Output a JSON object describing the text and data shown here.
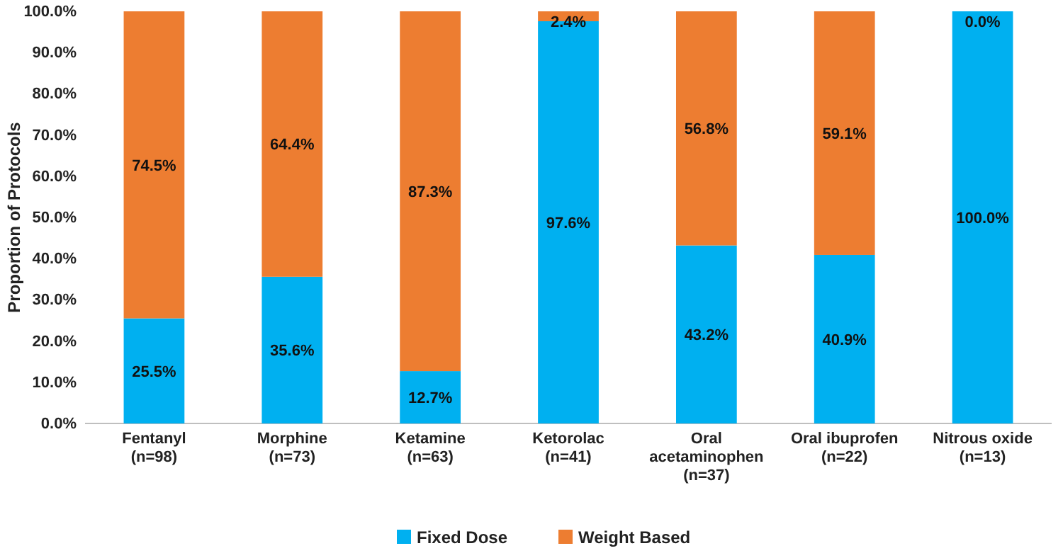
{
  "chart_data": {
    "type": "bar",
    "stacked": true,
    "ylabel": "Proportion of Protocols",
    "categories": [
      "Fentanyl\n(n=98)",
      "Morphine\n(n=73)",
      "Ketamine\n(n=63)",
      "Ketorolac\n(n=41)",
      "Oral\nacetaminophen\n(n=37)",
      "Oral ibuprofen\n(n=22)",
      "Nitrous oxide\n(n=13)"
    ],
    "series": [
      {
        "name": "Fixed Dose",
        "color": "#00b0f0",
        "values": [
          25.5,
          35.6,
          12.7,
          97.6,
          43.2,
          40.9,
          100.0
        ],
        "value_labels": [
          "25.5%",
          "35.6%",
          "12.7%",
          "97.6%",
          "43.2%",
          "40.9%",
          "100.0%"
        ]
      },
      {
        "name": "Weight Based",
        "color": "#ed7d31",
        "values": [
          74.5,
          64.4,
          87.3,
          2.4,
          56.8,
          59.1,
          0.0
        ],
        "value_labels": [
          "74.5%",
          "64.4%",
          "87.3%",
          "2.4%",
          "56.8%",
          "59.1%",
          "0.0%"
        ]
      }
    ],
    "ylim": [
      0,
      100
    ],
    "yticks": [
      {
        "value": 0,
        "label": "0.0%"
      },
      {
        "value": 10,
        "label": "10.0%"
      },
      {
        "value": 20,
        "label": "20.0%"
      },
      {
        "value": 30,
        "label": "30.0%"
      },
      {
        "value": 40,
        "label": "40.0%"
      },
      {
        "value": 50,
        "label": "50.0%"
      },
      {
        "value": 60,
        "label": "60.0%"
      },
      {
        "value": 70,
        "label": "70.0%"
      },
      {
        "value": 80,
        "label": "80.0%"
      },
      {
        "value": 90,
        "label": "90.0%"
      },
      {
        "value": 100,
        "label": "100.0%"
      }
    ],
    "legend": "bottom",
    "grid": false
  }
}
